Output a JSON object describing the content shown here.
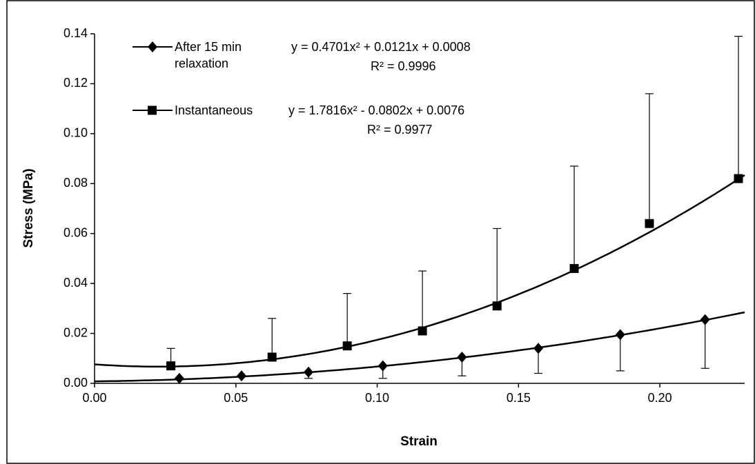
{
  "chart_data": {
    "type": "scatter",
    "x_label": "Strain",
    "y_label": "Stress (MPa)",
    "xlim": [
      0,
      0.23
    ],
    "ylim": [
      0,
      0.14
    ],
    "xticks": [
      {
        "value": 0,
        "label": "0.00"
      },
      {
        "value": 0.05,
        "label": "0.05"
      },
      {
        "value": 0.1,
        "label": "0.10"
      },
      {
        "value": 0.15,
        "label": "0.15"
      },
      {
        "value": 0.2,
        "label": "0.20"
      }
    ],
    "yticks": [
      {
        "value": 0,
        "label": "0.00"
      },
      {
        "value": 0.02,
        "label": "0.02"
      },
      {
        "value": 0.04,
        "label": "0.04"
      },
      {
        "value": 0.06,
        "label": "0.06"
      },
      {
        "value": 0.08,
        "label": "0.08"
      },
      {
        "value": 0.1,
        "label": "0.10"
      },
      {
        "value": 0.12,
        "label": "0.12"
      },
      {
        "value": 0.14,
        "label": "0.14"
      }
    ],
    "series": [
      {
        "name": "After 15 min relaxation",
        "color": "#000000",
        "marker": "diamond",
        "error_direction": "down",
        "x": [
          0.03,
          0.052,
          0.0757,
          0.102,
          0.13,
          0.157,
          0.186,
          0.216
        ],
        "values": [
          0.002,
          0.003,
          0.0045,
          0.007,
          0.0105,
          0.014,
          0.0195,
          0.0255
        ],
        "errors": [
          0.0005,
          0.0005,
          0.0025,
          0.005,
          0.0075,
          0.01,
          0.0145,
          0.0195
        ],
        "trendline": {
          "equation": "y = 0.4701x² + 0.0121x + 0.0008",
          "r_squared": "R² = 0.9996",
          "coefficients": [
            0.4701,
            0.0121,
            0.0008
          ]
        }
      },
      {
        "name": "Instantaneous",
        "color": "#000000",
        "marker": "square",
        "error_direction": "up",
        "x": [
          0.027,
          0.0628,
          0.0894,
          0.116,
          0.1424,
          0.1697,
          0.1963,
          0.2278
        ],
        "values": [
          0.007,
          0.0105,
          0.015,
          0.021,
          0.031,
          0.046,
          0.064,
          0.082
        ],
        "errors": [
          0.007,
          0.0155,
          0.021,
          0.024,
          0.031,
          0.041,
          0.052,
          0.057
        ],
        "trendline": {
          "equation": "y = 1.7816x² - 0.0802x + 0.0076",
          "r_squared": "R² = 0.9977",
          "coefficients": [
            1.7816,
            -0.0802,
            0.0076
          ]
        }
      }
    ]
  }
}
